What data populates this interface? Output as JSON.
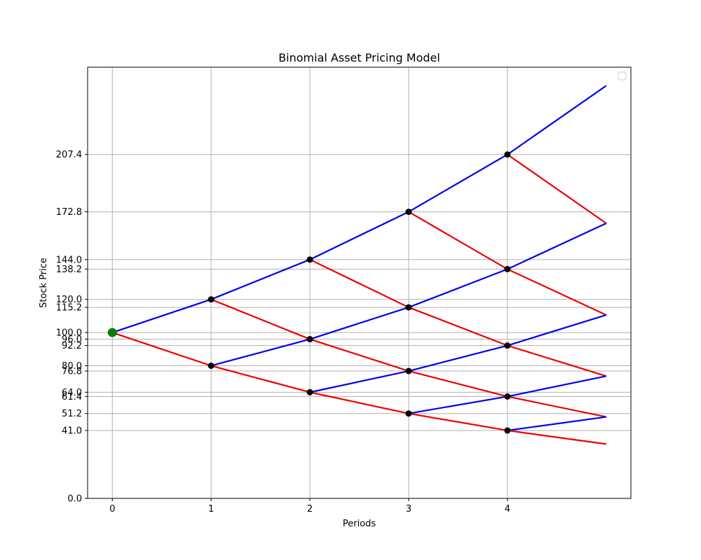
{
  "chart_data": {
    "type": "line",
    "title": "Binomial Asset Pricing Model",
    "xlabel": "Periods",
    "ylabel": "Stock Price",
    "xlim": [
      -0.25,
      5.25
    ],
    "ylim": [
      0,
      260
    ],
    "grid": true,
    "legend": "top-right",
    "x_ticks": [
      {
        "value": 0,
        "label": "0"
      },
      {
        "value": 1,
        "label": "1"
      },
      {
        "value": 2,
        "label": "2"
      },
      {
        "value": 3,
        "label": "3"
      },
      {
        "value": 4,
        "label": "4"
      }
    ],
    "y_ticks": [
      {
        "value": 0.0,
        "label": "0.0"
      },
      {
        "value": 40.96,
        "label": "41.0"
      },
      {
        "value": 51.2,
        "label": "51.2"
      },
      {
        "value": 61.44,
        "label": "61.4"
      },
      {
        "value": 64.0,
        "label": "64.0"
      },
      {
        "value": 76.8,
        "label": "76.8"
      },
      {
        "value": 80.0,
        "label": "80.0"
      },
      {
        "value": 92.16,
        "label": "92.2"
      },
      {
        "value": 96.0,
        "label": "96.0"
      },
      {
        "value": 100.0,
        "label": "100.0"
      },
      {
        "value": 115.2,
        "label": "115.2"
      },
      {
        "value": 120.0,
        "label": "120.0"
      },
      {
        "value": 138.24,
        "label": "138.2"
      },
      {
        "value": 144.0,
        "label": "144.0"
      },
      {
        "value": 172.8,
        "label": "172.8"
      },
      {
        "value": 207.36,
        "label": "207.4"
      }
    ],
    "up_factor": 1.2,
    "down_factor": 0.8,
    "initial_price": 100,
    "periods": 5,
    "colors": {
      "up": "#0000ee",
      "down": "#ee0000",
      "node": "#000000",
      "initial_node": "#008000",
      "grid": "#b0b0b0"
    }
  }
}
